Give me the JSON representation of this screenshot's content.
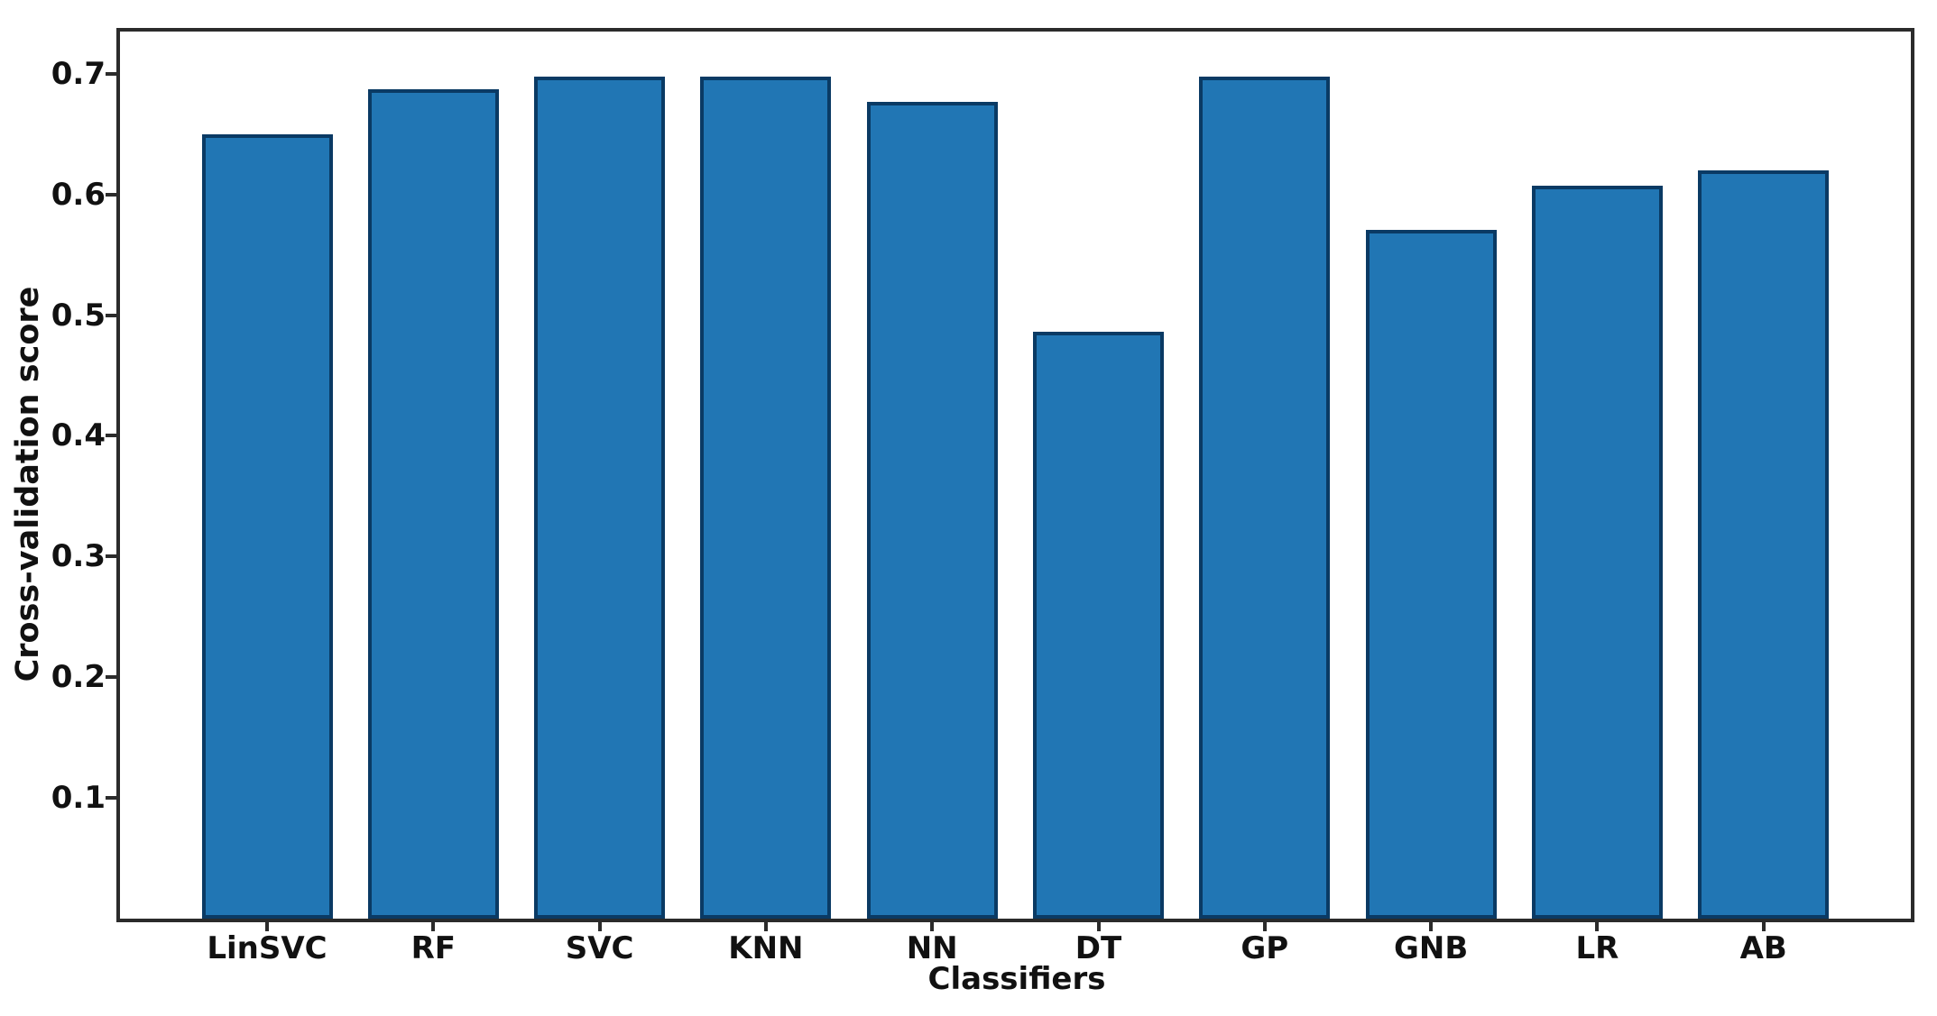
{
  "figure": {
    "background_color": "#ffffff"
  },
  "chart_data": {
    "type": "bar",
    "title": "",
    "xlabel": "Classifiers",
    "ylabel": "Cross-validation score",
    "categories": [
      "LinSVC",
      "RF",
      "SVC",
      "KNN",
      "NN",
      "DT",
      "GP",
      "GNB",
      "LR",
      "AB"
    ],
    "values": [
      0.65,
      0.687,
      0.698,
      0.698,
      0.677,
      0.486,
      0.698,
      0.571,
      0.607,
      0.62
    ],
    "ylim": [
      0,
      0.735
    ],
    "ytick_labels": [
      "0.1",
      "0.2",
      "0.3",
      "0.4",
      "0.5",
      "0.6",
      "0.7"
    ],
    "ytick_values": [
      0.1,
      0.2,
      0.3,
      0.4,
      0.5,
      0.6,
      0.7
    ],
    "grid": false,
    "legend": null,
    "bar_color": "#2176b4",
    "bar_edge_color": "#0a3a64",
    "spine_color": "#2b2b2b",
    "text_color": "#111111"
  }
}
